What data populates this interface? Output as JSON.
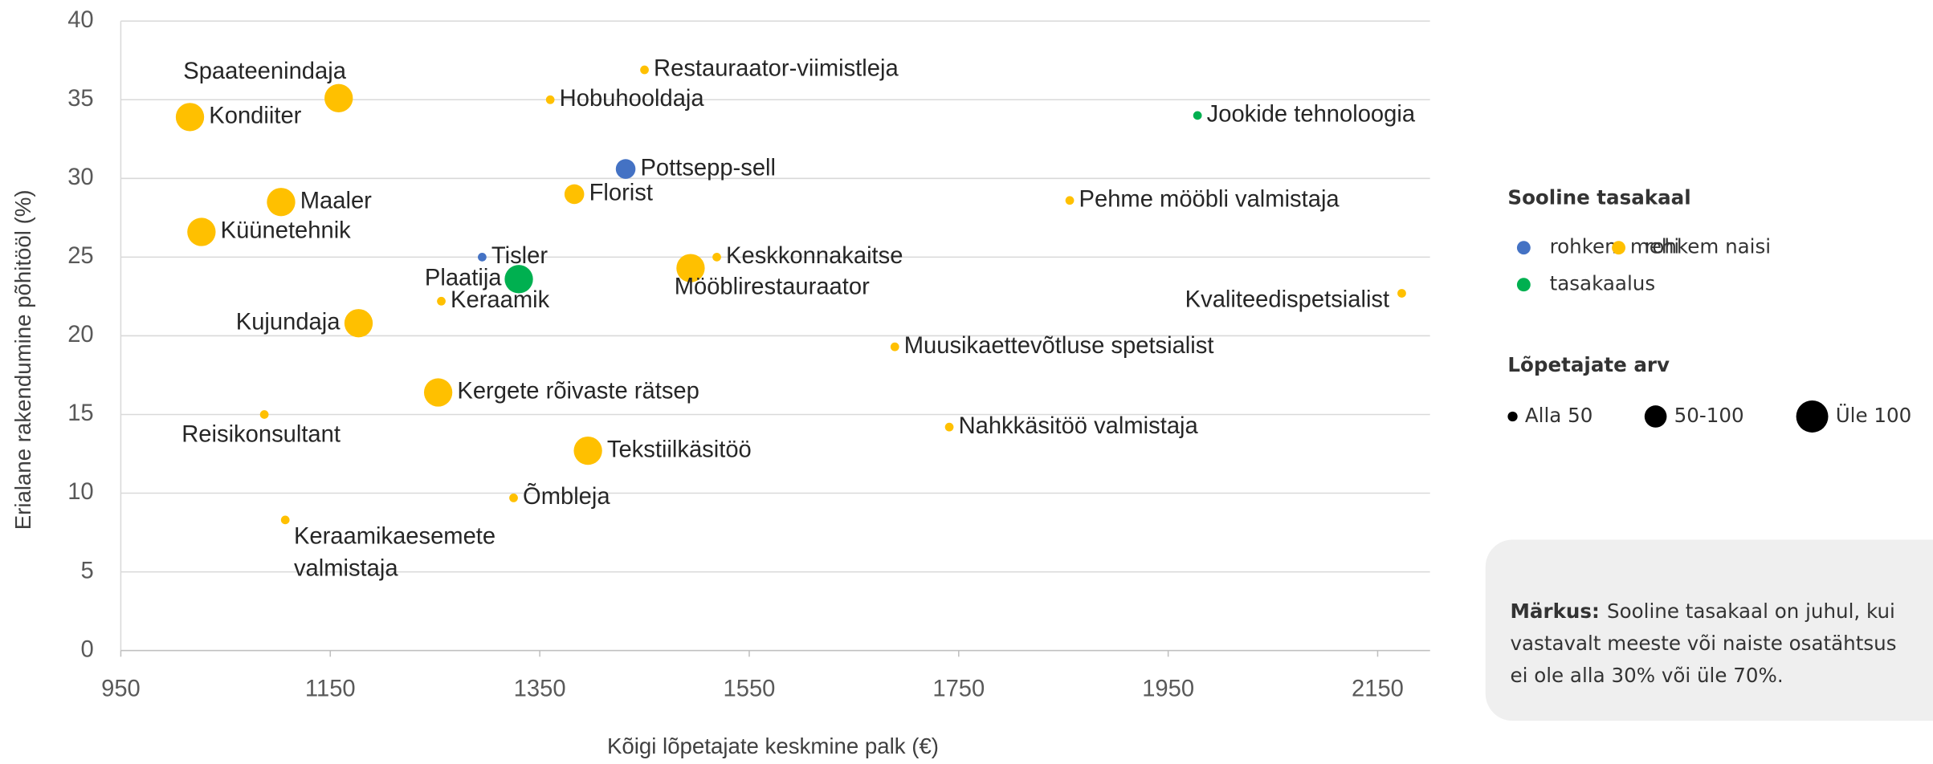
{
  "chart_data": {
    "type": "scatter",
    "xlabel": "Kõigi lõpetajate keskmine palk (€)",
    "ylabel": "Erialane rakendumine põhitööl (%)",
    "xlim": [
      950,
      2200
    ],
    "xticks": [
      950,
      1150,
      1350,
      1550,
      1750,
      1950,
      2150
    ],
    "ylim": [
      0,
      40
    ],
    "yticks": [
      0,
      5,
      10,
      15,
      20,
      25,
      30,
      35,
      40
    ],
    "grid": true,
    "legend_gender": {
      "title": "Sooline tasakaal",
      "items": [
        {
          "name": "rohkem mehi",
          "color": "#4472c4"
        },
        {
          "name": "rohkem naisi",
          "color": "#ffc000"
        },
        {
          "name": "tasakaalus",
          "color": "#00b050"
        }
      ]
    },
    "legend_size": {
      "title": "Lõpetajate arv",
      "items": [
        "Alla 50",
        "50-100",
        "Üle 100"
      ]
    },
    "note": {
      "label": "Märkus:",
      "lines": [
        "Sooline tasakaal on juhul, kui",
        "vastavalt meeste või naiste osatähtsus",
        "ei ole alla 30% või üle 70%."
      ]
    },
    "points": [
      {
        "label": "Spaateenindaja",
        "x": 1158,
        "y": 35.1,
        "gender": "rohkem naisi",
        "size": "Üle 100"
      },
      {
        "label": "Kondiiter",
        "x": 1016,
        "y": 33.9,
        "gender": "rohkem naisi",
        "size": "Üle 100"
      },
      {
        "label": "Restauraator-viimistleja",
        "x": 1450,
        "y": 36.9,
        "gender": "rohkem naisi",
        "size": "Alla 50"
      },
      {
        "label": "Hobuhooldaja",
        "x": 1360,
        "y": 35,
        "gender": "rohkem naisi",
        "size": "Alla 50"
      },
      {
        "label": "Jookide tehnoloogia",
        "x": 1978,
        "y": 34,
        "gender": "tasakaalus",
        "size": "Alla 50"
      },
      {
        "label": "Pottsepp-sell",
        "x": 1432,
        "y": 30.6,
        "gender": "rohkem mehi",
        "size": "50-100"
      },
      {
        "label": "Florist",
        "x": 1383,
        "y": 29,
        "gender": "rohkem naisi",
        "size": "50-100"
      },
      {
        "label": "Maaler",
        "x": 1103,
        "y": 28.5,
        "gender": "rohkem naisi",
        "size": "Üle 100"
      },
      {
        "label": "Pehme mööbli valmistaja",
        "x": 1856,
        "y": 28.6,
        "gender": "rohkem naisi",
        "size": "Alla 50"
      },
      {
        "label": "Küünetehnik",
        "x": 1027,
        "y": 26.6,
        "gender": "rohkem naisi",
        "size": "Üle 100"
      },
      {
        "label": "Tisler",
        "x": 1295,
        "y": 25,
        "gender": "rohkem mehi",
        "size": "Alla 50"
      },
      {
        "label": "Keskkonnakaitse",
        "x": 1519,
        "y": 25,
        "gender": "rohkem naisi",
        "size": "Alla 50"
      },
      {
        "label": "Plaatija",
        "x": 1330,
        "y": 23.6,
        "gender": "tasakaalus",
        "size": "Üle 100"
      },
      {
        "label": "Mööblirestauraator",
        "x": 1494,
        "y": 24.3,
        "gender": "rohkem naisi",
        "size": "Üle 100"
      },
      {
        "label": "Keraamik",
        "x": 1256,
        "y": 22.2,
        "gender": "rohkem naisi",
        "size": "Alla 50"
      },
      {
        "label": "Kvaliteedispetsialist",
        "x": 2173,
        "y": 22.7,
        "gender": "rohkem naisi",
        "size": "Alla 50"
      },
      {
        "label": "Kujundaja",
        "x": 1177,
        "y": 20.8,
        "gender": "rohkem naisi",
        "size": "Üle 100"
      },
      {
        "label": "Muusikaettevõtluse spetsialist",
        "x": 1689,
        "y": 19.3,
        "gender": "rohkem naisi",
        "size": "Alla 50"
      },
      {
        "label": "Kergete rõivaste rätsep",
        "x": 1253,
        "y": 16.4,
        "gender": "rohkem naisi",
        "size": "Üle 100"
      },
      {
        "label": "Reisikonsultant",
        "x": 1087,
        "y": 15,
        "gender": "rohkem naisi",
        "size": "Alla 50"
      },
      {
        "label": "Nahkkäsitöö valmistaja",
        "x": 1741,
        "y": 14.2,
        "gender": "rohkem naisi",
        "size": "Alla 50"
      },
      {
        "label": "Tekstiilkäsitöö",
        "x": 1396,
        "y": 12.7,
        "gender": "rohkem naisi",
        "size": "Üle 100"
      },
      {
        "label": "Õmbleja",
        "x": 1325,
        "y": 9.7,
        "gender": "rohkem naisi",
        "size": "Alla 50"
      },
      {
        "label": "Keraamikaesemete valmistaja",
        "x": 1107,
        "y": 8.3,
        "gender": "rohkem naisi",
        "size": "Alla 50"
      }
    ]
  }
}
